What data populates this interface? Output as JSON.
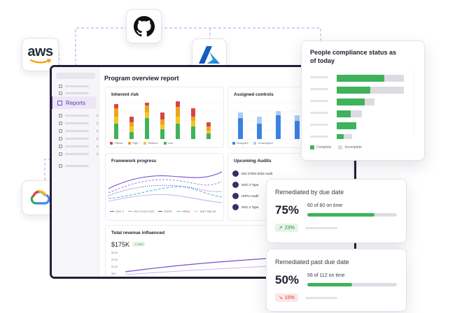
{
  "integrations": [
    {
      "name": "aws",
      "label": "aws"
    },
    {
      "name": "github"
    },
    {
      "name": "azure"
    },
    {
      "name": "google-cloud"
    }
  ],
  "sidebar": {
    "active_item": {
      "label": "Reports",
      "icon": "reports-icon"
    }
  },
  "main": {
    "title": "Program overview report",
    "inherent_risk": {
      "title": "Inherent risk",
      "legend": [
        "Critical",
        "High",
        "Medium",
        "Low"
      ],
      "colors": [
        "#d64545",
        "#f0a31a",
        "#f3c623",
        "#3fb25c"
      ]
    },
    "assigned_controls": {
      "title": "Assigned controls",
      "legend": [
        "Assigned",
        "Unassigned"
      ],
      "colors": [
        "#3b82e0",
        "#aacdf3"
      ]
    },
    "framework_progress": {
      "title": "Framework progress",
      "legend": [
        "SOC 2",
        "ISO 27001:2022",
        "GDPR",
        "HIPAA",
        "NIST 800-53"
      ]
    },
    "upcoming_audits": {
      "title": "Upcoming Audits",
      "items": [
        {
          "name": "ISO 27001:2022 Audit"
        },
        {
          "name": "SOC 2 Type"
        },
        {
          "name": "HIPAA Audit"
        },
        {
          "name": "SOC 2 Type"
        }
      ]
    },
    "revenue": {
      "title": "Total revenue influenced",
      "value": "$175K",
      "change": "↗ 24%",
      "axis": [
        "$20K",
        "$15K",
        "$10K",
        "$5K",
        "$0K"
      ]
    }
  },
  "compliance": {
    "title": "People compliance status as of today",
    "legend": [
      "Complete",
      "Incomplete"
    ],
    "colors": {
      "complete": "#3fb25c",
      "incomplete": "#dcdbe2"
    }
  },
  "remediated_on_time": {
    "title": "Remediated by due date",
    "percent": "75%",
    "detail": "60 of 80 on time",
    "progress": 0.75,
    "change": "23%",
    "trend": "up"
  },
  "remediated_past_due": {
    "title": "Remediated past due date",
    "percent": "50%",
    "detail": "56 of 112 on time",
    "progress": 0.5,
    "change": "15%",
    "trend": "down"
  }
}
